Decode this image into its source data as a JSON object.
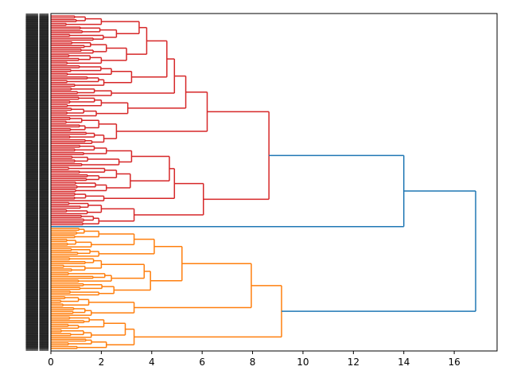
{
  "chart_data": {
    "type": "dendrogram",
    "orientation": "right",
    "title": "",
    "xlabel": "",
    "ylabel": "",
    "xlim": [
      0,
      17.7
    ],
    "xticks": [
      0,
      2,
      4,
      6,
      8,
      10,
      12,
      14,
      16
    ],
    "xtick_labels": [
      "0",
      "2",
      "4",
      "6",
      "8",
      "10",
      "12",
      "14",
      "16"
    ],
    "grid": false,
    "leaf_labels_legible": false,
    "above_threshold_color": "#1f77b4",
    "clusters": [
      {
        "name": "cluster-red",
        "color": "#d62728",
        "leaf_fraction": [
          0.0,
          0.61
        ]
      },
      {
        "name": "outlier-blue",
        "color": "#1f77b4",
        "leaf_fraction": [
          0.61,
          0.625
        ]
      },
      {
        "name": "cluster-orange",
        "color": "#ff7f0e",
        "leaf_fraction": [
          0.625,
          1.0
        ]
      }
    ],
    "tree": {
      "h": 16.85,
      "c": "#1f77b4",
      "children": [
        {
          "h": 14.0,
          "c": "#1f77b4",
          "children": [
            {
              "h": 8.65,
              "c": "#d62728",
              "children": [
                {
                  "h": 6.2,
                  "c": "#d62728",
                  "children": [
                    {
                      "h": 5.35,
                      "c": "#d62728",
                      "children": [
                        {
                          "h": 4.9,
                          "c": "#d62728",
                          "children": [
                            {
                              "h": 4.6,
                              "c": "#d62728",
                              "children": [
                                {
                                  "h": 3.8,
                                  "c": "#d62728",
                                  "children": [
                                    {
                                      "h": 3.5,
                                      "c": "#d62728",
                                      "children": [
                                        {
                                          "h": 2.0,
                                          "c": "#d62728",
                                          "n": 6
                                        },
                                        {
                                          "h": 2.6,
                                          "c": "#d62728",
                                          "n": 8
                                        }
                                      ]
                                    },
                                    {
                                      "h": 3.0,
                                      "c": "#d62728",
                                      "children": [
                                        {
                                          "h": 2.2,
                                          "c": "#d62728",
                                          "n": 7
                                        },
                                        {
                                          "h": 2.0,
                                          "c": "#d62728",
                                          "n": 6
                                        }
                                      ]
                                    }
                                  ]
                                },
                                {
                                  "h": 3.2,
                                  "c": "#d62728",
                                  "children": [
                                    {
                                      "h": 2.4,
                                      "c": "#d62728",
                                      "n": 6
                                    },
                                    {
                                      "h": 2.1,
                                      "c": "#d62728",
                                      "n": 6
                                    }
                                  ]
                                }
                              ]
                            },
                            {
                              "h": 2.4,
                              "c": "#d62728",
                              "n": 5
                            }
                          ]
                        },
                        {
                          "h": 3.05,
                          "c": "#d62728",
                          "children": [
                            {
                              "h": 2.0,
                              "c": "#d62728",
                              "n": 6
                            },
                            {
                              "h": 1.8,
                              "c": "#d62728",
                              "n": 5
                            }
                          ]
                        }
                      ]
                    },
                    {
                      "h": 2.6,
                      "c": "#d62728",
                      "children": [
                        {
                          "h": 1.9,
                          "c": "#d62728",
                          "n": 8
                        },
                        {
                          "h": 2.1,
                          "c": "#d62728",
                          "n": 7
                        }
                      ]
                    }
                  ]
                },
                {
                  "h": 6.05,
                  "c": "#d62728",
                  "children": [
                    {
                      "h": 4.9,
                      "c": "#d62728",
                      "children": [
                        {
                          "h": 4.7,
                          "c": "#d62728",
                          "children": [
                            {
                              "h": 3.2,
                              "c": "#d62728",
                              "children": [
                                {
                                  "h": 2.2,
                                  "c": "#d62728",
                                  "n": 6
                                },
                                {
                                  "h": 2.7,
                                  "c": "#d62728",
                                  "n": 6
                                }
                              ]
                            },
                            {
                              "h": 3.15,
                              "c": "#d62728",
                              "children": [
                                {
                                  "h": 2.6,
                                  "c": "#d62728",
                                  "n": 8
                                },
                                {
                                  "h": 2.2,
                                  "c": "#d62728",
                                  "n": 6
                                }
                              ]
                            }
                          ]
                        },
                        {
                          "h": 2.1,
                          "c": "#d62728",
                          "n": 5
                        }
                      ]
                    },
                    {
                      "h": 3.3,
                      "c": "#d62728",
                      "children": [
                        {
                          "h": 2.0,
                          "c": "#d62728",
                          "n": 7
                        },
                        {
                          "h": 1.9,
                          "c": "#d62728",
                          "n": 6
                        }
                      ]
                    }
                  ]
                }
              ]
            },
            {
              "h": 0,
              "c": "#1f77b4",
              "n": 1
            }
          ]
        },
        {
          "h": 9.15,
          "c": "#ff7f0e",
          "children": [
            {
              "h": 7.95,
              "c": "#ff7f0e",
              "children": [
                {
                  "h": 5.2,
                  "c": "#ff7f0e",
                  "children": [
                    {
                      "h": 4.1,
                      "c": "#ff7f0e",
                      "children": [
                        {
                          "h": 3.3,
                          "c": "#ff7f0e",
                          "children": [
                            {
                              "h": 1.9,
                              "c": "#ff7f0e",
                              "n": 6
                            },
                            {
                              "h": 1.6,
                              "c": "#ff7f0e",
                              "n": 5
                            }
                          ]
                        },
                        {
                          "h": 1.9,
                          "c": "#ff7f0e",
                          "n": 5
                        }
                      ]
                    },
                    {
                      "h": 3.95,
                      "c": "#ff7f0e",
                      "children": [
                        {
                          "h": 3.7,
                          "c": "#ff7f0e",
                          "children": [
                            {
                              "h": 2.0,
                              "c": "#ff7f0e",
                              "n": 8
                            },
                            {
                              "h": 2.4,
                              "c": "#ff7f0e",
                              "n": 6
                            }
                          ]
                        },
                        {
                          "h": 2.5,
                          "c": "#ff7f0e",
                          "n": 7
                        }
                      ]
                    }
                  ]
                },
                {
                  "h": 3.3,
                  "c": "#ff7f0e",
                  "children": [
                    {
                      "h": 1.5,
                      "c": "#ff7f0e",
                      "n": 6
                    },
                    {
                      "h": 1.6,
                      "c": "#ff7f0e",
                      "n": 5
                    }
                  ]
                }
              ]
            },
            {
              "h": 3.3,
              "c": "#ff7f0e",
              "children": [
                {
                  "h": 2.95,
                  "c": "#ff7f0e",
                  "children": [
                    {
                      "h": 2.1,
                      "c": "#ff7f0e",
                      "n": 7
                    },
                    {
                      "h": 1.6,
                      "c": "#ff7f0e",
                      "n": 5
                    }
                  ]
                },
                {
                  "h": 2.2,
                  "c": "#ff7f0e",
                  "n": 6
                }
              ]
            }
          ]
        }
      ]
    }
  }
}
